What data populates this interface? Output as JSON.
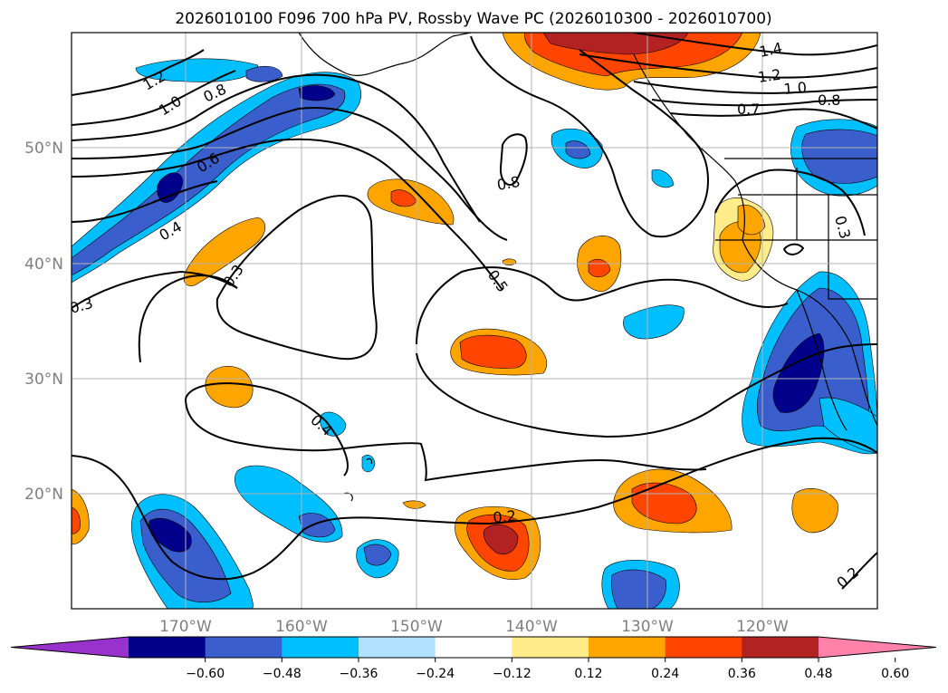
{
  "figure": {
    "title": "2026010100 F096 700 hPa PV, Rossby Wave PC (2026010300 - 2026010700)",
    "lon_labels": [
      "170°W",
      "160°W",
      "150°W",
      "140°W",
      "130°W",
      "120°W"
    ],
    "lat_labels": [
      "50°N",
      "40°N",
      "30°N",
      "20°N"
    ],
    "colorbar": {
      "tick_labels": [
        "−0.60",
        "−0.48",
        "−0.36",
        "−0.24",
        "−0.12",
        "0.12",
        "0.24",
        "0.36",
        "0.48",
        "0.60"
      ],
      "colors": [
        "#9932cc",
        "#00008b",
        "#3a5fcd",
        "#00bfff",
        "#b0e2ff",
        "#ffffff",
        "#ffec8b",
        "#ffa500",
        "#ff4500",
        "#b22222",
        "#ff82ab"
      ]
    },
    "contour_labels": [
      {
        "id": "1.2-w",
        "text": "1.2"
      },
      {
        "id": "1.0-w",
        "text": "1.0"
      },
      {
        "id": "0.8-w",
        "text": "0.8"
      },
      {
        "id": "0.6-w",
        "text": "0.6"
      },
      {
        "id": "0.4-w",
        "text": "0.4"
      },
      {
        "id": "0.3-a",
        "text": "0.3"
      },
      {
        "id": "0.3-b",
        "text": "0.3"
      },
      {
        "id": "0.8-c",
        "text": "0.8"
      },
      {
        "id": "0.5-c",
        "text": "0.5"
      },
      {
        "id": "0.4-s",
        "text": "0.4"
      },
      {
        "id": "0.2-s",
        "text": "0.2"
      },
      {
        "id": "1.4-e",
        "text": "1.4"
      },
      {
        "id": "1.2-e",
        "text": "1.2"
      },
      {
        "id": "1.0-e",
        "text": "1.0"
      },
      {
        "id": "0.8-e",
        "text": "0.8"
      },
      {
        "id": "0.7-e",
        "text": "0.7"
      },
      {
        "id": "0.3-e",
        "text": "0.3"
      },
      {
        "id": "0.2-e",
        "text": "0.2"
      }
    ]
  }
}
